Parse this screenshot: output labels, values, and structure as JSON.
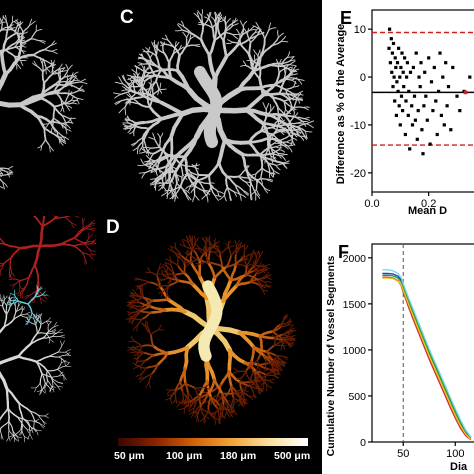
{
  "panels": {
    "c": {
      "letter": "C"
    },
    "d": {
      "letter": "D"
    },
    "e": {
      "letter": "E"
    },
    "f": {
      "letter": "F"
    }
  },
  "colorbar": {
    "labels": [
      "50 μm",
      "100 μm",
      "180 μm",
      "500 μm"
    ],
    "colors": [
      "#3a0600",
      "#8c2200",
      "#d2620a",
      "#f3a43a",
      "#fbe0a0",
      "#ffffff"
    ]
  },
  "colors": {
    "vessel_gray": "#c9c9c9",
    "vessel_red": "#b02020",
    "vessel_cyan": "#5fd0e0",
    "limit_line": "#d21f1f"
  },
  "chart_data": [
    {
      "panel": "E",
      "type": "scatter",
      "xlabel": "Mean D",
      "ylabel": "Difference as % of the Average",
      "xlim": [
        0,
        0.36
      ],
      "ylim": [
        -24,
        14
      ],
      "xticks": [
        "0.0",
        "0.2"
      ],
      "xtick_values": [
        0.0,
        0.2
      ],
      "yticks": [
        "10",
        "0",
        "-10",
        "-20"
      ],
      "ytick_values": [
        10,
        0,
        -10,
        -20
      ],
      "reference_lines": [
        {
          "y": 9.3,
          "style": "dashed",
          "color": "#d21f1f"
        },
        {
          "y": -3.2,
          "style": "solid",
          "color": "#000000"
        },
        {
          "y": -14.2,
          "style": "dashed",
          "color": "#d21f1f"
        }
      ],
      "points_x": [
        0.06,
        0.062,
        0.065,
        0.068,
        0.07,
        0.072,
        0.074,
        0.076,
        0.078,
        0.08,
        0.082,
        0.084,
        0.086,
        0.088,
        0.09,
        0.092,
        0.094,
        0.096,
        0.098,
        0.1,
        0.102,
        0.104,
        0.106,
        0.108,
        0.11,
        0.112,
        0.115,
        0.118,
        0.12,
        0.122,
        0.125,
        0.128,
        0.13,
        0.133,
        0.136,
        0.14,
        0.143,
        0.146,
        0.15,
        0.153,
        0.156,
        0.16,
        0.163,
        0.166,
        0.17,
        0.173,
        0.176,
        0.18,
        0.183,
        0.186,
        0.19,
        0.195,
        0.2,
        0.205,
        0.21,
        0.215,
        0.22,
        0.225,
        0.23,
        0.235,
        0.24,
        0.245,
        0.25,
        0.255,
        0.26,
        0.265,
        0.27,
        0.278,
        0.285,
        0.3,
        0.31,
        0.325,
        0.345
      ],
      "points_y": [
        6,
        10,
        3,
        8,
        1,
        5,
        -2,
        7,
        0,
        -5,
        4,
        2,
        -8,
        -1,
        3,
        -3,
        6,
        -6,
        0,
        -10,
        2,
        -4,
        5,
        -7,
        1,
        -2,
        4,
        -12,
        -5,
        0,
        3,
        -8,
        -3,
        -15,
        1,
        -6,
        -10,
        2,
        -4,
        -9,
        5,
        -13,
        -7,
        0,
        -2,
        3,
        -11,
        -16,
        -6,
        1,
        -4,
        -9,
        4,
        -14,
        -1,
        -7,
        2,
        -5,
        -12,
        -3,
        5,
        -8,
        0,
        -10,
        3,
        -6,
        -2,
        -11,
        2,
        -4,
        -7,
        -3,
        0
      ]
    },
    {
      "panel": "F",
      "type": "line",
      "xlabel": "Dia",
      "ylabel": "Cumulative Number of Vessel Segments",
      "xlim": [
        20,
        118
      ],
      "ylim": [
        0,
        2150
      ],
      "xticks": [
        "50",
        "100"
      ],
      "xtick_values": [
        50,
        100
      ],
      "yticks": [
        "2000",
        "1500",
        "1000",
        "500",
        "0"
      ],
      "ytick_values": [
        2000,
        1500,
        1000,
        500,
        0
      ],
      "vline": {
        "x": 50,
        "style": "dashed",
        "color": "#555555"
      },
      "series": [
        {
          "color": "#1f3fcf",
          "x": [
            30,
            35,
            40,
            45,
            48,
            50,
            55,
            60,
            65,
            70,
            75,
            80,
            85,
            90,
            95,
            100,
            105,
            110,
            115
          ],
          "values": [
            1830,
            1830,
            1825,
            1800,
            1760,
            1700,
            1560,
            1420,
            1280,
            1140,
            1000,
            870,
            740,
            610,
            480,
            350,
            230,
            120,
            50
          ]
        },
        {
          "color": "#2ca02c",
          "x": [
            30,
            35,
            40,
            45,
            48,
            50,
            55,
            60,
            65,
            70,
            75,
            80,
            85,
            90,
            95,
            100,
            105,
            110,
            115
          ],
          "values": [
            1810,
            1810,
            1805,
            1780,
            1740,
            1680,
            1530,
            1390,
            1250,
            1110,
            970,
            840,
            710,
            580,
            450,
            320,
            200,
            100,
            40
          ]
        },
        {
          "color": "#d62728",
          "x": [
            30,
            35,
            40,
            45,
            48,
            50,
            55,
            60,
            65,
            70,
            75,
            80,
            85,
            90,
            95,
            100,
            105,
            110,
            115
          ],
          "values": [
            1790,
            1790,
            1780,
            1750,
            1700,
            1630,
            1470,
            1320,
            1180,
            1040,
            900,
            770,
            640,
            510,
            380,
            260,
            150,
            70,
            25
          ]
        },
        {
          "color": "#e8c020",
          "x": [
            30,
            35,
            40,
            45,
            48,
            50,
            55,
            60,
            65,
            70,
            75,
            80,
            85,
            90,
            95,
            100,
            105,
            110,
            115
          ],
          "values": [
            1780,
            1780,
            1775,
            1745,
            1710,
            1650,
            1500,
            1355,
            1215,
            1075,
            935,
            805,
            675,
            545,
            415,
            290,
            175,
            85,
            30
          ]
        },
        {
          "color": "#7fd8e8",
          "x": [
            30,
            35,
            40,
            45,
            48,
            50,
            55,
            60,
            65,
            70,
            75,
            80,
            85,
            90,
            95,
            100,
            105,
            110,
            115
          ],
          "values": [
            1870,
            1870,
            1860,
            1830,
            1790,
            1720,
            1570,
            1430,
            1290,
            1150,
            1010,
            880,
            750,
            620,
            490,
            360,
            240,
            130,
            55
          ]
        }
      ]
    }
  ]
}
